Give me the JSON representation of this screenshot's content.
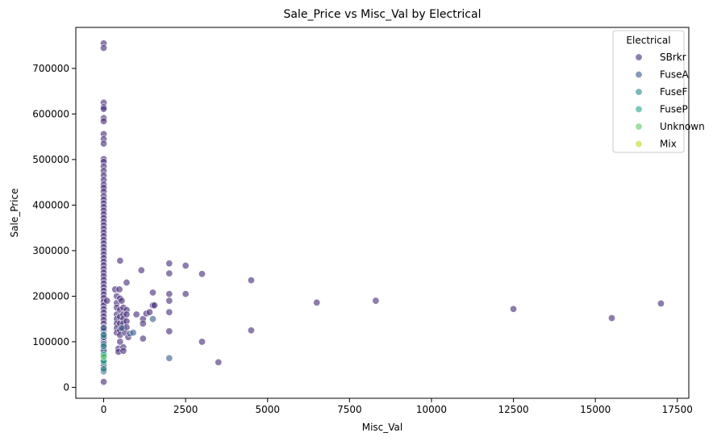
{
  "chart_data": {
    "type": "scatter",
    "title": "Sale_Price vs Misc_Val by Electrical",
    "xlabel": "Misc_Val",
    "ylabel": "Sale_Price",
    "xlim": [
      -850,
      17850
    ],
    "ylim": [
      -24000,
      790000
    ],
    "xticks": [
      0,
      2500,
      5000,
      7500,
      10000,
      12500,
      15000,
      17500
    ],
    "yticks": [
      0,
      100000,
      200000,
      300000,
      400000,
      500000,
      600000,
      700000
    ],
    "grid": false,
    "legend": {
      "title": "Electrical",
      "placement": "top-right"
    },
    "series": [
      {
        "name": "SBrkr",
        "color": "#472d7b",
        "points": [
          [
            0,
            755000
          ],
          [
            0,
            745000
          ],
          [
            0,
            625000
          ],
          [
            0,
            615000
          ],
          [
            0,
            611000
          ],
          [
            0,
            591000
          ],
          [
            0,
            584000
          ],
          [
            0,
            556000
          ],
          [
            0,
            545000
          ],
          [
            0,
            535000
          ],
          [
            0,
            501000
          ],
          [
            0,
            495000
          ],
          [
            0,
            485000
          ],
          [
            0,
            475000
          ],
          [
            0,
            465000
          ],
          [
            0,
            455000
          ],
          [
            0,
            445000
          ],
          [
            0,
            438000
          ],
          [
            0,
            430000
          ],
          [
            0,
            420000
          ],
          [
            0,
            412000
          ],
          [
            0,
            404000
          ],
          [
            0,
            396000
          ],
          [
            0,
            388000
          ],
          [
            0,
            380000
          ],
          [
            0,
            372000
          ],
          [
            0,
            364000
          ],
          [
            0,
            356000
          ],
          [
            0,
            348000
          ],
          [
            0,
            340000
          ],
          [
            0,
            332000
          ],
          [
            0,
            324000
          ],
          [
            0,
            316000
          ],
          [
            0,
            308000
          ],
          [
            0,
            300000
          ],
          [
            0,
            292000
          ],
          [
            0,
            284000
          ],
          [
            0,
            276000
          ],
          [
            0,
            268000
          ],
          [
            0,
            260000
          ],
          [
            0,
            252000
          ],
          [
            0,
            244000
          ],
          [
            0,
            236000
          ],
          [
            0,
            228000
          ],
          [
            0,
            220000
          ],
          [
            0,
            212000
          ],
          [
            0,
            204000
          ],
          [
            0,
            196000
          ],
          [
            0,
            188000
          ],
          [
            0,
            180000
          ],
          [
            0,
            172000
          ],
          [
            0,
            164000
          ],
          [
            0,
            156000
          ],
          [
            0,
            148000
          ],
          [
            0,
            140000
          ],
          [
            0,
            132000
          ],
          [
            0,
            124000
          ],
          [
            0,
            116000
          ],
          [
            0,
            108000
          ],
          [
            0,
            100000
          ],
          [
            0,
            92000
          ],
          [
            0,
            84000
          ],
          [
            0,
            76000
          ],
          [
            0,
            68000
          ],
          [
            0,
            60000
          ],
          [
            0,
            52000
          ],
          [
            0,
            44000
          ],
          [
            0,
            12000
          ],
          [
            100,
            190000
          ],
          [
            350,
            215000
          ],
          [
            400,
            200000
          ],
          [
            400,
            185000
          ],
          [
            400,
            175000
          ],
          [
            400,
            160000
          ],
          [
            400,
            150000
          ],
          [
            400,
            140000
          ],
          [
            400,
            130000
          ],
          [
            400,
            120000
          ],
          [
            450,
            85000
          ],
          [
            450,
            78000
          ],
          [
            480,
            215000
          ],
          [
            500,
            195000
          ],
          [
            500,
            170000
          ],
          [
            500,
            155000
          ],
          [
            500,
            140000
          ],
          [
            500,
            125000
          ],
          [
            500,
            115000
          ],
          [
            500,
            100000
          ],
          [
            500,
            278000
          ],
          [
            550,
            190000
          ],
          [
            600,
            175000
          ],
          [
            600,
            160000
          ],
          [
            600,
            150000
          ],
          [
            600,
            140000
          ],
          [
            600,
            130000
          ],
          [
            600,
            88000
          ],
          [
            600,
            80000
          ],
          [
            650,
            120000
          ],
          [
            700,
            230000
          ],
          [
            700,
            170000
          ],
          [
            700,
            160000
          ],
          [
            700,
            145000
          ],
          [
            700,
            132000
          ],
          [
            750,
            110000
          ],
          [
            1000,
            160000
          ],
          [
            1150,
            257000
          ],
          [
            1200,
            150000
          ],
          [
            1200,
            140000
          ],
          [
            1200,
            107000
          ],
          [
            1300,
            162000
          ],
          [
            1400,
            165000
          ],
          [
            1500,
            208000
          ],
          [
            1500,
            180000
          ],
          [
            1550,
            180000
          ],
          [
            2000,
            272000
          ],
          [
            2000,
            250000
          ],
          [
            2000,
            205000
          ],
          [
            2000,
            190000
          ],
          [
            2000,
            165000
          ],
          [
            2000,
            123000
          ],
          [
            2500,
            267000
          ],
          [
            2500,
            205000
          ],
          [
            3000,
            249000
          ],
          [
            3000,
            100000
          ],
          [
            3500,
            55000
          ],
          [
            4500,
            235000
          ],
          [
            4500,
            125000
          ],
          [
            6500,
            186000
          ],
          [
            8300,
            190000
          ],
          [
            12500,
            172000
          ],
          [
            15500,
            152000
          ],
          [
            17000,
            184000
          ]
        ]
      },
      {
        "name": "FuseA",
        "color": "#3b5e8c",
        "points": [
          [
            0,
            130000
          ],
          [
            0,
            110000
          ],
          [
            0,
            95000
          ],
          [
            0,
            80000
          ],
          [
            0,
            60000
          ],
          [
            0,
            50000
          ],
          [
            0,
            35000
          ],
          [
            550,
            130000
          ],
          [
            800,
            118000
          ],
          [
            900,
            120000
          ],
          [
            1500,
            150000
          ],
          [
            2000,
            64000
          ]
        ]
      },
      {
        "name": "FuseF",
        "color": "#2c8a8c",
        "points": [
          [
            0,
            115000
          ],
          [
            0,
            90000
          ],
          [
            0,
            70000
          ],
          [
            0,
            55000
          ],
          [
            0,
            40000
          ]
        ]
      },
      {
        "name": "FuseP",
        "color": "#27a88e",
        "points": [
          [
            0,
            72000
          ],
          [
            0,
            58000
          ]
        ]
      },
      {
        "name": "Unknown",
        "color": "#62c96b",
        "points": [
          [
            0,
            67000
          ]
        ]
      },
      {
        "name": "Mix",
        "color": "#b8de29",
        "points": []
      }
    ]
  }
}
